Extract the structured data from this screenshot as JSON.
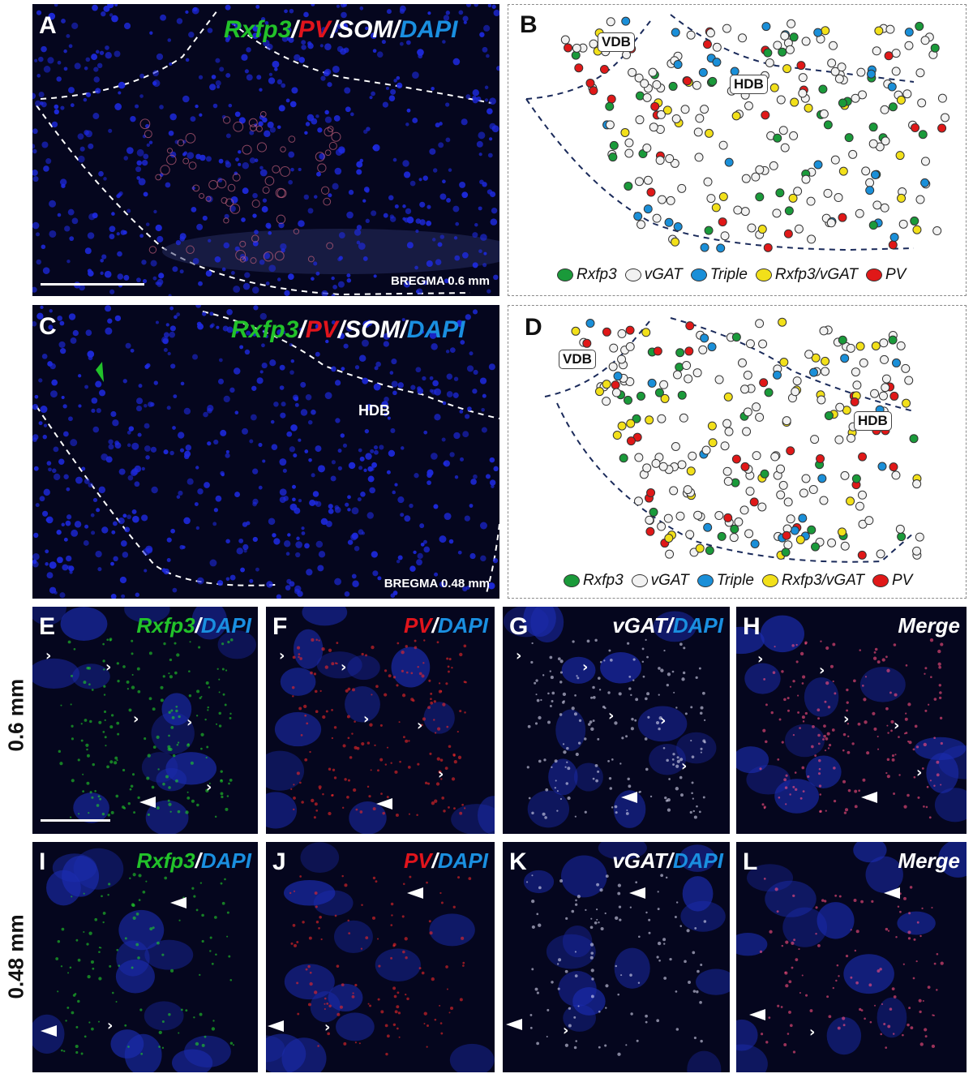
{
  "panelA": {
    "letter": "A",
    "title": [
      "Rxfp3",
      "/",
      "PV",
      "/",
      "SOM",
      "/",
      "DAPI"
    ],
    "bregma": "BREGMA 0.6 mm"
  },
  "panelB": {
    "letter": "B",
    "vdb": "VDB",
    "hdb": "HDB"
  },
  "panelC": {
    "letter": "C",
    "title": [
      "Rxfp3",
      "/",
      "PV",
      "/",
      "SOM",
      "/",
      "DAPI"
    ],
    "hdb": "HDB",
    "bregma": "BREGMA 0.48 mm"
  },
  "panelD": {
    "letter": "D",
    "vdb": "VDB",
    "hdb": "HDB"
  },
  "legend": {
    "rxfp3": "Rxfp3",
    "vgat": "vGAT",
    "triple": "Triple",
    "rxfp3vgat": "Rxfp3/vGAT",
    "pv": "PV"
  },
  "colors": {
    "rxfp3": "#1a9a3a",
    "vgat": "#f2f2f2",
    "triple": "#1a8fd8",
    "rxfp3vgat": "#f2e01a",
    "pv": "#e01818"
  },
  "rows": {
    "top": "0.6 mm",
    "bottom": "0.48 mm"
  },
  "panelE": {
    "letter": "E",
    "a": "Rxfp3",
    "b": "/",
    "c": "DAPI"
  },
  "panelF": {
    "letter": "F",
    "a": "PV",
    "b": "/",
    "c": "DAPI"
  },
  "panelG": {
    "letter": "G",
    "a": "vGAT",
    "b": "/",
    "c": "DAPI"
  },
  "panelH": {
    "letter": "H",
    "a": "Merge"
  },
  "panelI": {
    "letter": "I",
    "a": "Rxfp3",
    "b": "/",
    "c": "DAPI"
  },
  "panelJ": {
    "letter": "J",
    "a": "PV",
    "b": "/",
    "c": "DAPI"
  },
  "panelK": {
    "letter": "K",
    "a": "vGAT",
    "b": "/",
    "c": "DAPI"
  },
  "panelL": {
    "letter": "L",
    "a": "Merge"
  }
}
